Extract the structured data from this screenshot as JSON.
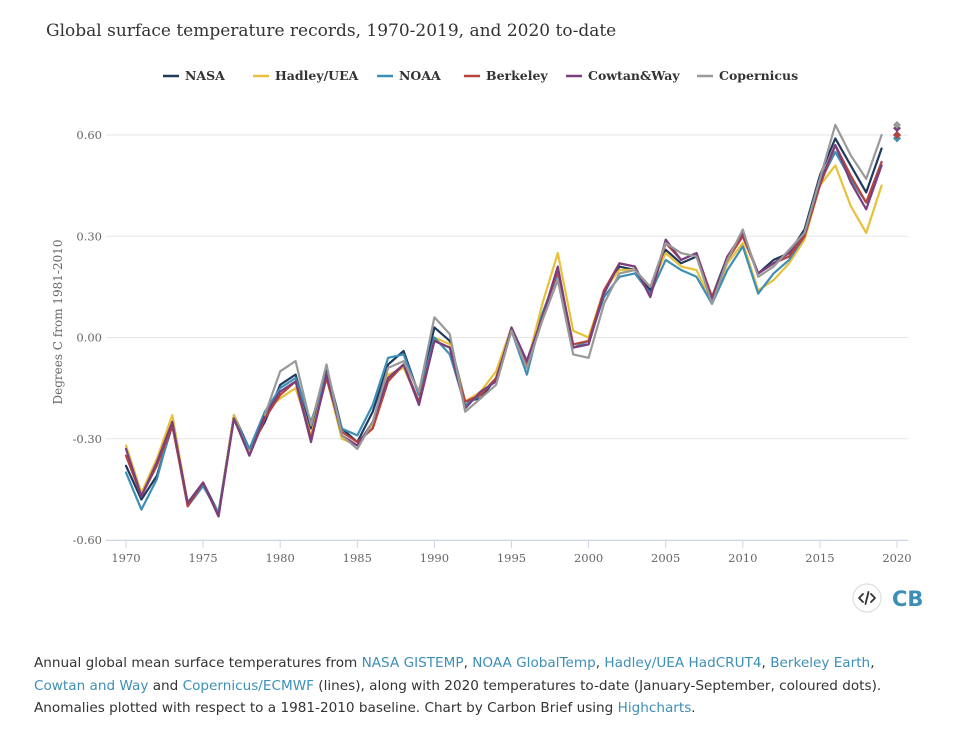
{
  "chart_data": {
    "type": "line",
    "title": "Global surface temperature records, 1970-2019, and 2020 to-date",
    "xlabel": "",
    "ylabel": "Degrees C from 1981-2010",
    "xlim": [
      1970,
      2020
    ],
    "ylim": [
      -0.6,
      0.6
    ],
    "x_ticks": [
      1970,
      1975,
      1980,
      1985,
      1990,
      1995,
      2000,
      2005,
      2010,
      2015,
      2020
    ],
    "y_ticks": [
      0.6,
      0.3,
      0.0,
      -0.3,
      -0.6
    ],
    "y_tick_labels": [
      "0.60",
      "0.30",
      "0.00",
      "-0.30",
      "-0.60"
    ],
    "grid": true,
    "legend_position": "top-center",
    "x": [
      1970,
      1971,
      1972,
      1973,
      1974,
      1975,
      1976,
      1977,
      1978,
      1979,
      1980,
      1981,
      1982,
      1983,
      1984,
      1985,
      1986,
      1987,
      1988,
      1989,
      1990,
      1991,
      1992,
      1993,
      1994,
      1995,
      1996,
      1997,
      1998,
      1999,
      2000,
      2001,
      2002,
      2003,
      2004,
      2005,
      2006,
      2007,
      2008,
      2009,
      2010,
      2011,
      2012,
      2013,
      2014,
      2015,
      2016,
      2017,
      2018,
      2019
    ],
    "series": [
      {
        "name": "NASA",
        "color": "#1f3a5f",
        "values": [
          -0.38,
          -0.48,
          -0.41,
          -0.26,
          -0.49,
          -0.43,
          -0.52,
          -0.23,
          -0.33,
          -0.25,
          -0.14,
          -0.11,
          -0.27,
          -0.09,
          -0.27,
          -0.31,
          -0.22,
          -0.08,
          -0.04,
          -0.17,
          0.03,
          -0.01,
          -0.19,
          -0.18,
          -0.12,
          0.02,
          -0.07,
          0.07,
          0.19,
          -0.03,
          -0.02,
          0.14,
          0.21,
          0.2,
          0.14,
          0.26,
          0.22,
          0.24,
          0.12,
          0.24,
          0.3,
          0.19,
          0.23,
          0.25,
          0.32,
          0.48,
          0.59,
          0.51,
          0.43,
          0.56
        ],
        "point_2020": 0.6
      },
      {
        "name": "Hadley/UEA",
        "color": "#e8c13a",
        "values": [
          -0.32,
          -0.46,
          -0.36,
          -0.23,
          -0.49,
          -0.44,
          -0.52,
          -0.23,
          -0.34,
          -0.22,
          -0.18,
          -0.15,
          -0.29,
          -0.12,
          -0.3,
          -0.32,
          -0.26,
          -0.11,
          -0.09,
          -0.19,
          0.0,
          -0.02,
          -0.19,
          -0.16,
          -0.1,
          0.03,
          -0.08,
          0.1,
          0.25,
          0.02,
          0.0,
          0.14,
          0.2,
          0.2,
          0.15,
          0.25,
          0.21,
          0.2,
          0.1,
          0.22,
          0.28,
          0.14,
          0.17,
          0.22,
          0.29,
          0.45,
          0.51,
          0.39,
          0.31,
          0.45
        ],
        "point_2020": 0.59
      },
      {
        "name": "NOAA",
        "color": "#3d8fb5",
        "values": [
          -0.4,
          -0.51,
          -0.42,
          -0.25,
          -0.5,
          -0.44,
          -0.52,
          -0.24,
          -0.33,
          -0.22,
          -0.15,
          -0.12,
          -0.25,
          -0.11,
          -0.27,
          -0.29,
          -0.2,
          -0.06,
          -0.05,
          -0.17,
          0.0,
          -0.05,
          -0.2,
          -0.17,
          -0.12,
          0.02,
          -0.11,
          0.07,
          0.19,
          -0.03,
          -0.01,
          0.12,
          0.18,
          0.19,
          0.13,
          0.23,
          0.2,
          0.18,
          0.1,
          0.2,
          0.27,
          0.13,
          0.19,
          0.23,
          0.3,
          0.46,
          0.55,
          0.47,
          0.4,
          0.52
        ],
        "point_2020": 0.59
      },
      {
        "name": "Berkeley",
        "color": "#b8433a",
        "values": [
          -0.35,
          -0.47,
          -0.38,
          -0.26,
          -0.5,
          -0.43,
          -0.53,
          -0.24,
          -0.35,
          -0.24,
          -0.17,
          -0.13,
          -0.3,
          -0.12,
          -0.28,
          -0.31,
          -0.27,
          -0.13,
          -0.08,
          -0.19,
          -0.01,
          -0.03,
          -0.19,
          -0.17,
          -0.12,
          0.02,
          -0.08,
          0.06,
          0.2,
          -0.02,
          -0.01,
          0.14,
          0.22,
          0.21,
          0.12,
          0.28,
          0.23,
          0.25,
          0.12,
          0.23,
          0.3,
          0.19,
          0.22,
          0.24,
          0.3,
          0.45,
          0.57,
          0.48,
          0.4,
          0.52
        ],
        "point_2020": 0.6
      },
      {
        "name": "Cowtan&Way",
        "color": "#7a3f7e",
        "values": [
          -0.33,
          -0.47,
          -0.37,
          -0.25,
          -0.49,
          -0.43,
          -0.53,
          -0.24,
          -0.35,
          -0.23,
          -0.16,
          -0.13,
          -0.31,
          -0.11,
          -0.29,
          -0.32,
          -0.25,
          -0.12,
          -0.08,
          -0.2,
          -0.01,
          -0.03,
          -0.21,
          -0.16,
          -0.13,
          0.03,
          -0.07,
          0.06,
          0.21,
          -0.03,
          -0.02,
          0.13,
          0.22,
          0.21,
          0.12,
          0.29,
          0.23,
          0.25,
          0.11,
          0.24,
          0.31,
          0.19,
          0.22,
          0.25,
          0.31,
          0.46,
          0.57,
          0.46,
          0.38,
          0.51
        ],
        "point_2020": 0.62
      },
      {
        "name": "Copernicus",
        "color": "#999999",
        "values": [
          null,
          null,
          null,
          null,
          null,
          null,
          null,
          null,
          null,
          -0.23,
          -0.1,
          -0.07,
          -0.26,
          -0.08,
          -0.29,
          -0.33,
          -0.25,
          -0.09,
          -0.07,
          -0.16,
          0.06,
          0.01,
          -0.22,
          -0.18,
          -0.14,
          0.02,
          -0.09,
          0.05,
          0.17,
          -0.05,
          -0.06,
          0.1,
          0.19,
          0.2,
          0.15,
          0.28,
          0.25,
          0.24,
          0.1,
          0.23,
          0.32,
          0.18,
          0.21,
          0.26,
          0.31,
          0.47,
          0.63,
          0.54,
          0.47,
          0.6
        ],
        "point_2020": 0.63
      }
    ]
  },
  "embed_icon": "code-embed-icon",
  "logo": "CB",
  "caption": {
    "t1": "Annual global mean surface temperatures from ",
    "l1": "NASA GISTEMP",
    "t2": ", ",
    "l2": "NOAA GlobalTemp",
    "t3": ", ",
    "l3": "Hadley/UEA HadCRUT4",
    "t4": ", ",
    "l4": "Berkeley Earth",
    "t5": ",",
    "l5": "Cowtan and Way",
    "t6": " and ",
    "l6": "Copernicus/ECMWF",
    "t7": " (lines), along with 2020 temperatures to-date (January-September, coloured dots). Anomalies plotted with respect to a 1981-2010 baseline. Chart by Carbon Brief using ",
    "l7": "Highcharts",
    "t8": "."
  },
  "colors": {
    "grid": "#e6e6e6",
    "axis": "#ccd6eb",
    "text": "#333333",
    "tick": "#666666",
    "link": "#3d8fb5"
  }
}
